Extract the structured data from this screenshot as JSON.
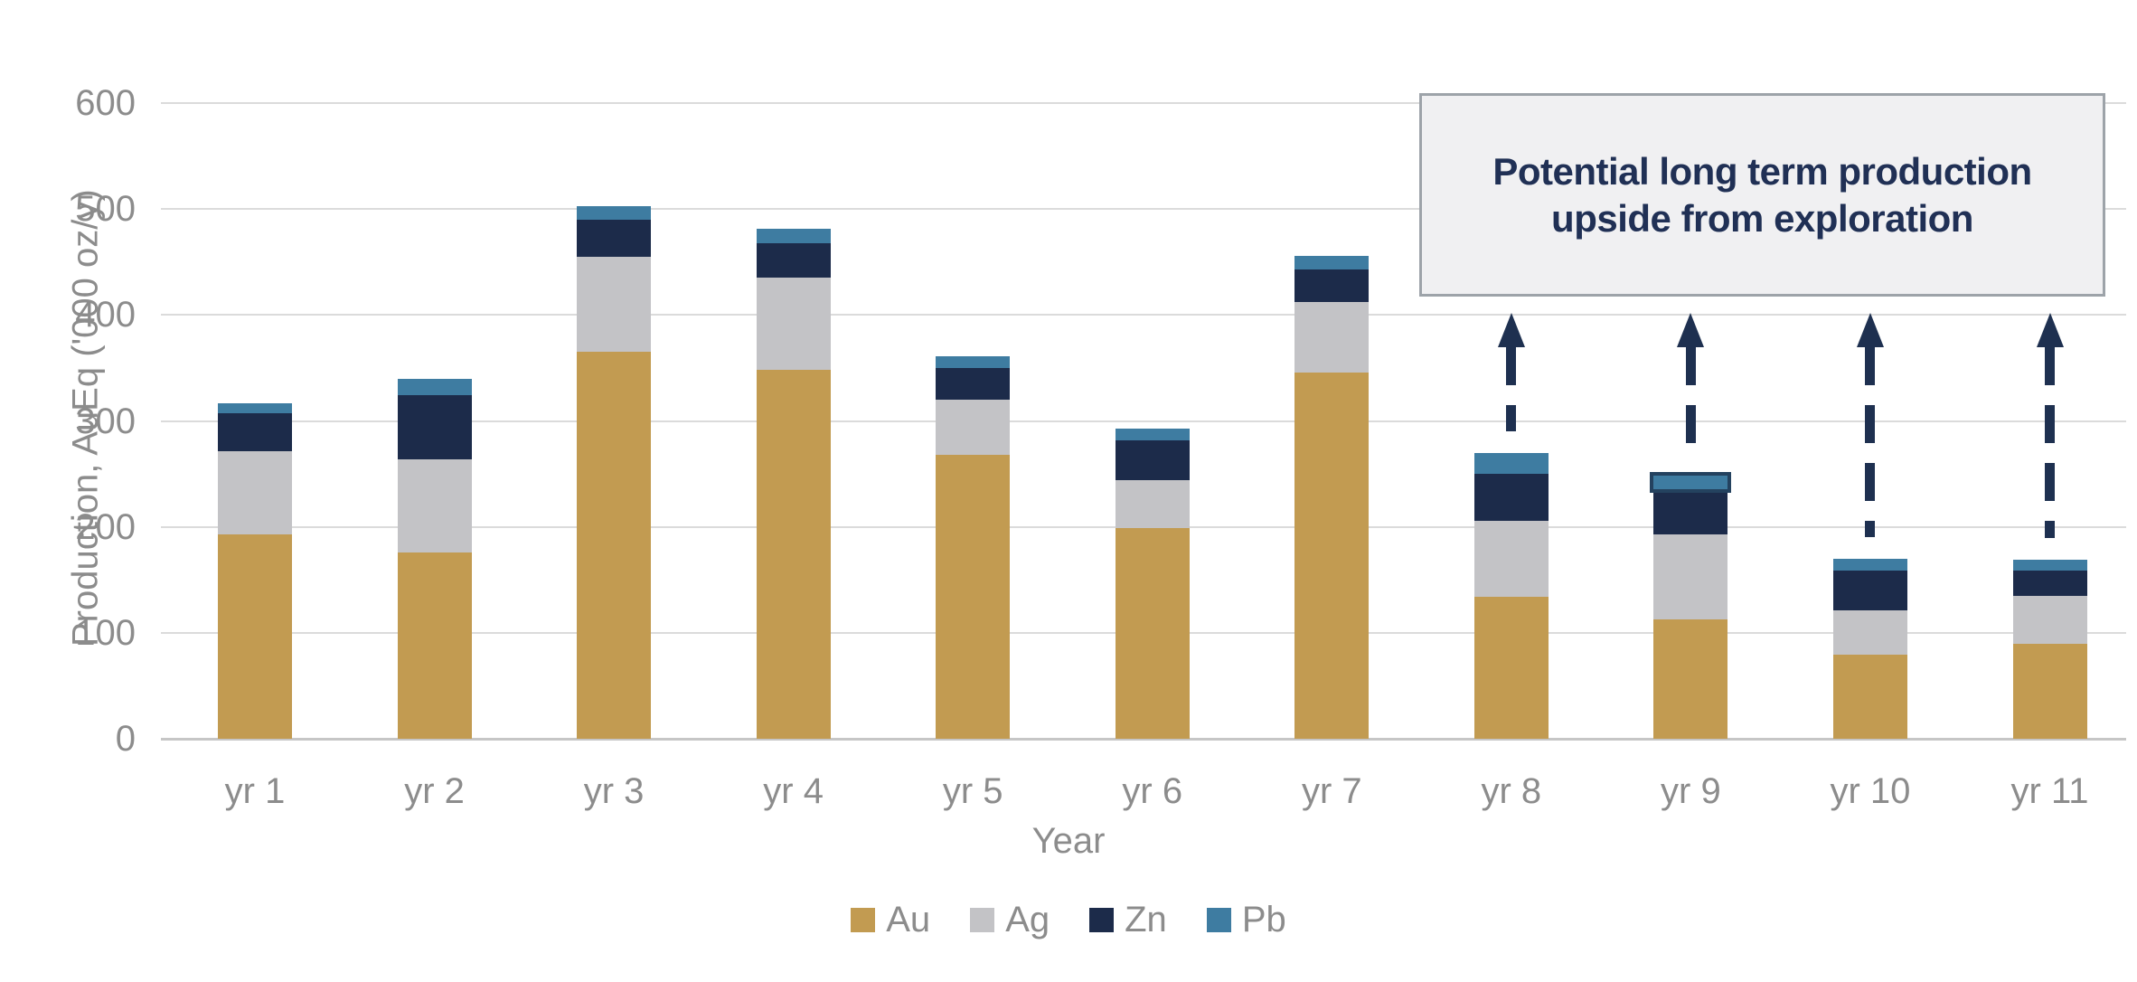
{
  "chart_data": {
    "type": "bar",
    "stacked": true,
    "xlabel": "Year",
    "ylabel": "Production, AuEq ('000 oz/y)",
    "categories": [
      "yr 1",
      "yr 2",
      "yr 3",
      "yr 4",
      "yr 5",
      "yr 6",
      "yr 7",
      "yr 8",
      "yr 9",
      "yr 10",
      "yr 11"
    ],
    "series": [
      {
        "name": "Au",
        "color": "#C29B51",
        "values": [
          193,
          176,
          365,
          348,
          268,
          199,
          346,
          134,
          113,
          79,
          90
        ]
      },
      {
        "name": "Ag",
        "color": "#C3C3C6",
        "values": [
          78,
          88,
          90,
          87,
          52,
          45,
          66,
          72,
          80,
          42,
          45
        ]
      },
      {
        "name": "Zn",
        "color": "#1C2B4A",
        "values": [
          36,
          60,
          35,
          33,
          30,
          38,
          31,
          44,
          39,
          38,
          24
        ]
      },
      {
        "name": "Pb",
        "color": "#3E7CA1",
        "values": [
          10,
          16,
          13,
          13,
          11,
          11,
          13,
          20,
          18,
          11,
          10
        ]
      }
    ],
    "totals": [
      317,
      340,
      503,
      481,
      361,
      293,
      456,
      270,
      250,
      170,
      169
    ],
    "ylim": [
      0,
      600
    ],
    "yticks": [
      0,
      100,
      200,
      300,
      400,
      500,
      600
    ],
    "grid": "horizontal",
    "legend_position": "bottom",
    "pb_outlined_category": "yr 9",
    "upside_arrow_categories": [
      "yr 8",
      "yr 9",
      "yr 10",
      "yr 11"
    ]
  },
  "annotation": {
    "line1": "Potential long term production",
    "line2": "upside from exploration",
    "text_color": "#203055",
    "box_fill": "#F0F0F2",
    "box_border": "#9DA3A9"
  },
  "colors": {
    "arrow": "#1E3050",
    "gridline": "#DBDBDB",
    "axis_line": "#C6C6C6",
    "tick_text": "#8C8C8C",
    "cap_border": "#24425F"
  }
}
